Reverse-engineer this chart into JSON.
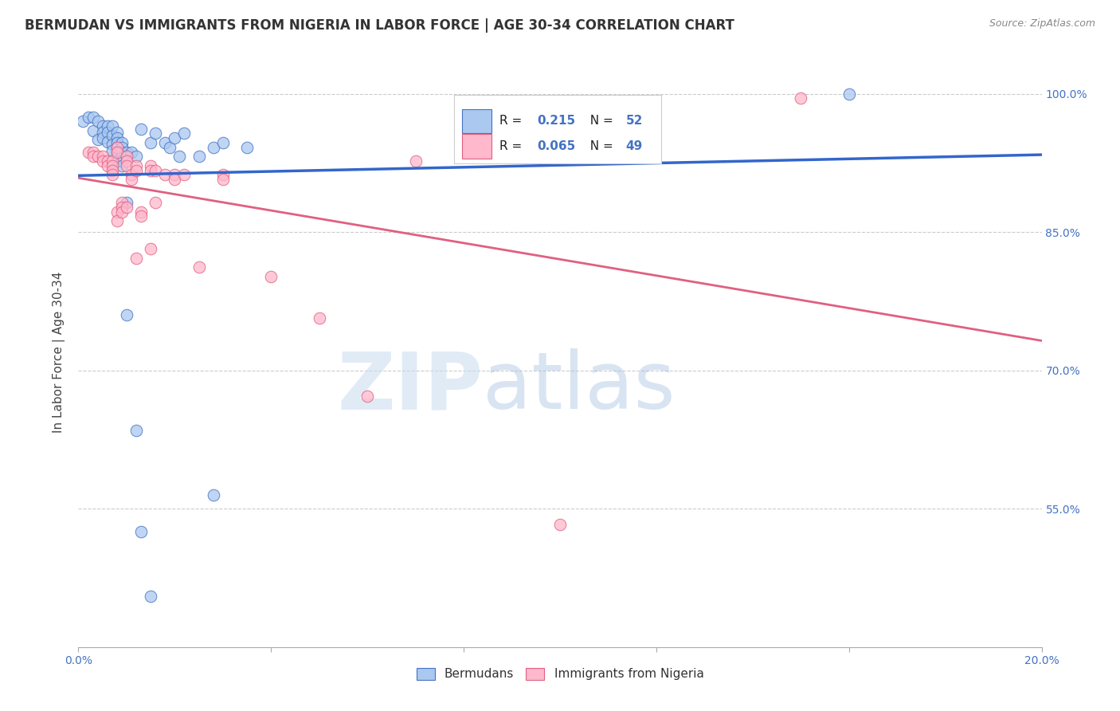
{
  "title": "BERMUDAN VS IMMIGRANTS FROM NIGERIA IN LABOR FORCE | AGE 30-34 CORRELATION CHART",
  "source": "Source: ZipAtlas.com",
  "ylabel": "In Labor Force | Age 30-34",
  "xmin": 0.0,
  "xmax": 0.2,
  "ymin": 0.4,
  "ymax": 1.04,
  "legend_blue_r": "0.215",
  "legend_blue_n": "52",
  "legend_pink_r": "0.065",
  "legend_pink_n": "49",
  "blue_scatter": [
    [
      0.001,
      0.97
    ],
    [
      0.002,
      0.975
    ],
    [
      0.003,
      0.975
    ],
    [
      0.003,
      0.96
    ],
    [
      0.004,
      0.97
    ],
    [
      0.004,
      0.95
    ],
    [
      0.005,
      0.965
    ],
    [
      0.005,
      0.958
    ],
    [
      0.005,
      0.952
    ],
    [
      0.006,
      0.965
    ],
    [
      0.006,
      0.958
    ],
    [
      0.006,
      0.948
    ],
    [
      0.007,
      0.965
    ],
    [
      0.007,
      0.955
    ],
    [
      0.007,
      0.945
    ],
    [
      0.007,
      0.938
    ],
    [
      0.008,
      0.958
    ],
    [
      0.008,
      0.952
    ],
    [
      0.008,
      0.947
    ],
    [
      0.008,
      0.942
    ],
    [
      0.008,
      0.937
    ],
    [
      0.008,
      0.932
    ],
    [
      0.008,
      0.927
    ],
    [
      0.009,
      0.947
    ],
    [
      0.009,
      0.942
    ],
    [
      0.009,
      0.937
    ],
    [
      0.009,
      0.932
    ],
    [
      0.009,
      0.927
    ],
    [
      0.009,
      0.922
    ],
    [
      0.01,
      0.937
    ],
    [
      0.01,
      0.932
    ],
    [
      0.01,
      0.882
    ],
    [
      0.011,
      0.937
    ],
    [
      0.012,
      0.932
    ],
    [
      0.013,
      0.962
    ],
    [
      0.015,
      0.947
    ],
    [
      0.016,
      0.957
    ],
    [
      0.018,
      0.947
    ],
    [
      0.019,
      0.942
    ],
    [
      0.02,
      0.952
    ],
    [
      0.021,
      0.932
    ],
    [
      0.022,
      0.957
    ],
    [
      0.025,
      0.932
    ],
    [
      0.028,
      0.942
    ],
    [
      0.03,
      0.947
    ],
    [
      0.035,
      0.942
    ],
    [
      0.01,
      0.76
    ],
    [
      0.012,
      0.635
    ],
    [
      0.013,
      0.525
    ],
    [
      0.015,
      0.455
    ],
    [
      0.028,
      0.565
    ],
    [
      0.16,
      1.0
    ]
  ],
  "pink_scatter": [
    [
      0.002,
      0.937
    ],
    [
      0.003,
      0.937
    ],
    [
      0.003,
      0.932
    ],
    [
      0.004,
      0.932
    ],
    [
      0.005,
      0.932
    ],
    [
      0.005,
      0.927
    ],
    [
      0.006,
      0.927
    ],
    [
      0.006,
      0.922
    ],
    [
      0.007,
      0.927
    ],
    [
      0.007,
      0.922
    ],
    [
      0.007,
      0.917
    ],
    [
      0.007,
      0.912
    ],
    [
      0.008,
      0.942
    ],
    [
      0.008,
      0.937
    ],
    [
      0.008,
      0.872
    ],
    [
      0.008,
      0.862
    ],
    [
      0.009,
      0.882
    ],
    [
      0.009,
      0.877
    ],
    [
      0.009,
      0.872
    ],
    [
      0.01,
      0.932
    ],
    [
      0.01,
      0.927
    ],
    [
      0.01,
      0.922
    ],
    [
      0.01,
      0.877
    ],
    [
      0.011,
      0.912
    ],
    [
      0.011,
      0.907
    ],
    [
      0.012,
      0.922
    ],
    [
      0.012,
      0.917
    ],
    [
      0.012,
      0.822
    ],
    [
      0.013,
      0.872
    ],
    [
      0.013,
      0.867
    ],
    [
      0.015,
      0.922
    ],
    [
      0.015,
      0.917
    ],
    [
      0.015,
      0.832
    ],
    [
      0.016,
      0.917
    ],
    [
      0.016,
      0.882
    ],
    [
      0.018,
      0.912
    ],
    [
      0.02,
      0.912
    ],
    [
      0.02,
      0.907
    ],
    [
      0.022,
      0.912
    ],
    [
      0.025,
      0.812
    ],
    [
      0.03,
      0.912
    ],
    [
      0.03,
      0.907
    ],
    [
      0.04,
      0.802
    ],
    [
      0.05,
      0.757
    ],
    [
      0.06,
      0.672
    ],
    [
      0.07,
      0.927
    ],
    [
      0.08,
      0.937
    ],
    [
      0.1,
      0.533
    ],
    [
      0.15,
      0.995
    ]
  ],
  "blue_color": "#aac8f0",
  "blue_edge_color": "#4472c4",
  "pink_color": "#ffb8cc",
  "pink_edge_color": "#e06080",
  "blue_line_color": "#3366cc",
  "pink_line_color": "#e06080",
  "watermark_zip": "ZIP",
  "watermark_atlas": "atlas",
  "background_color": "#ffffff",
  "grid_color": "#cccccc",
  "axis_tick_color": "#4472c4",
  "title_color": "#333333",
  "source_color": "#888888",
  "ylabel_color": "#444444",
  "ytick_vals": [
    1.0,
    0.85,
    0.7,
    0.55
  ],
  "ytick_labels": [
    "100.0%",
    "85.0%",
    "70.0%",
    "55.0%"
  ],
  "xtick_labels_left": "0.0%",
  "xtick_labels_right": "20.0%",
  "legend_label_blue": "Bermudans",
  "legend_label_pink": "Immigrants from Nigeria"
}
